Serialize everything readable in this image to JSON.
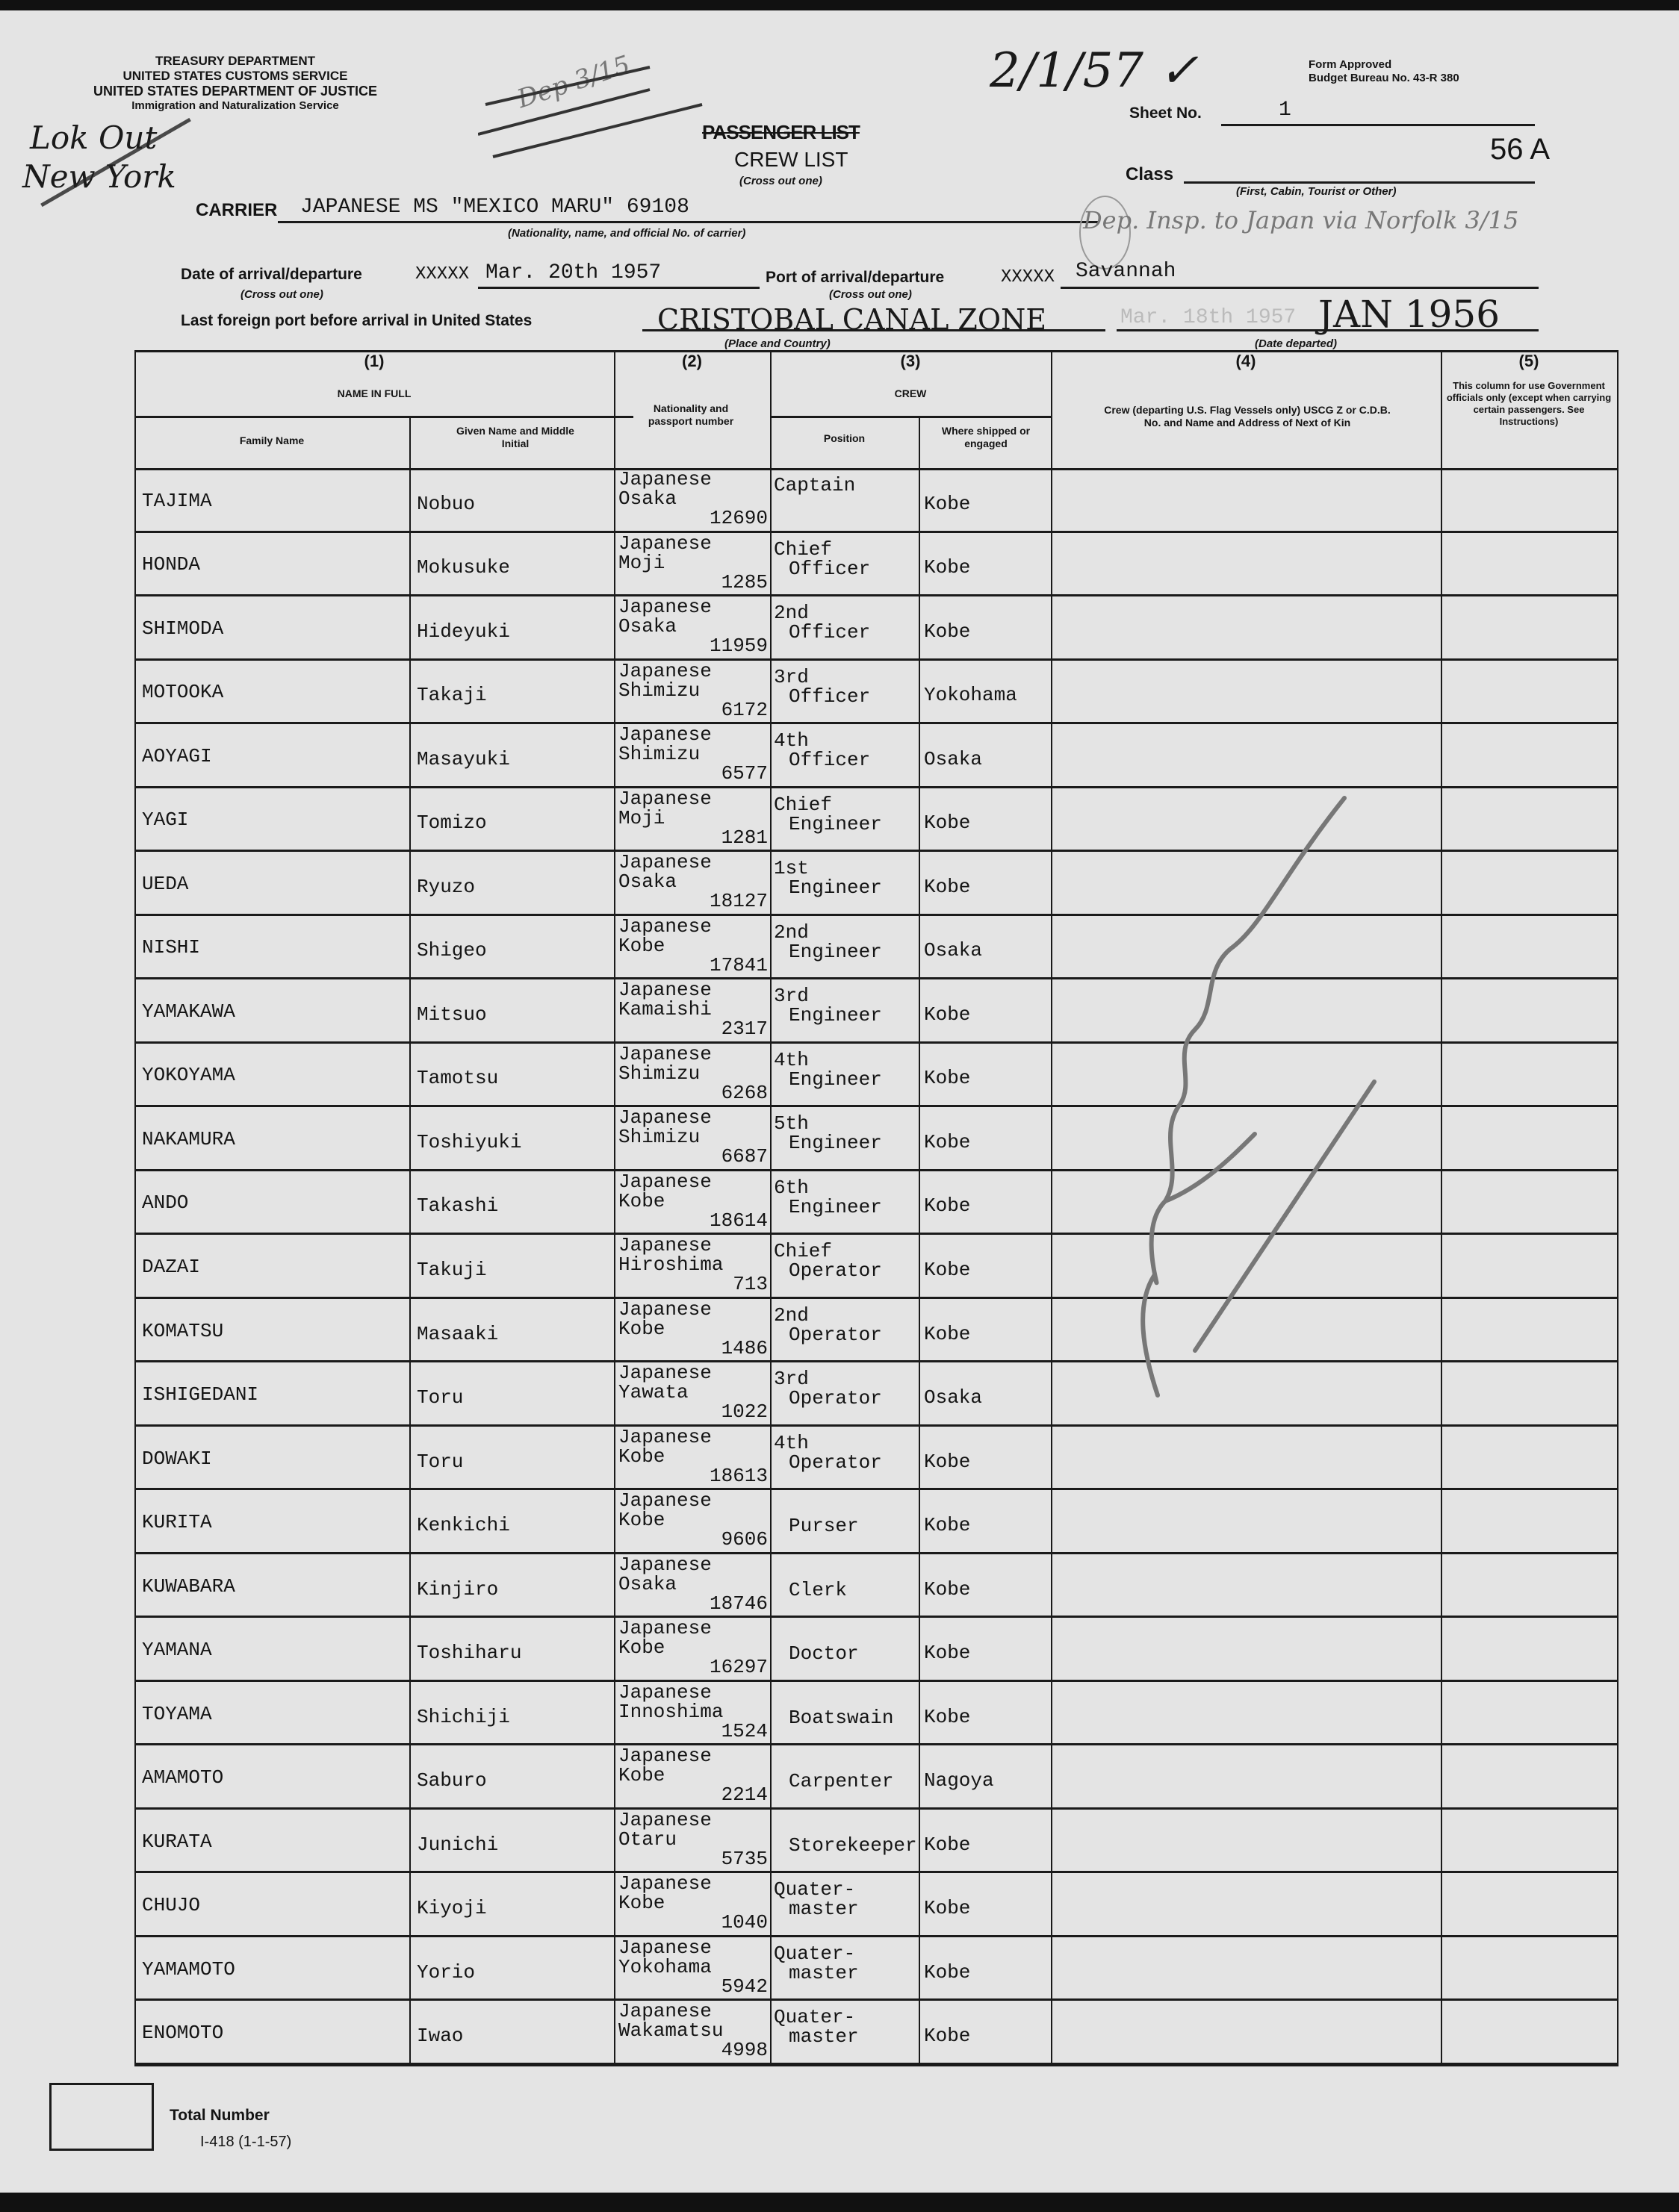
{
  "agency": {
    "line1": "TREASURY DEPARTMENT",
    "line2": "UNITED STATES CUSTOMS SERVICE",
    "line3": "UNITED STATES DEPARTMENT OF JUSTICE",
    "line4": "Immigration and Naturalization Service"
  },
  "form": {
    "approved": "Form Approved",
    "budget": "Budget Bureau No. 43-R 380",
    "title_passenger": "PASSENGER LIST",
    "title_crew": "CREW LIST",
    "title_caption": "(Cross out one)",
    "number": "I-418 (1-1-57)"
  },
  "sheet": {
    "label": "Sheet No.",
    "value": "1",
    "stamp": "56 A"
  },
  "class": {
    "label": "Class",
    "caption": "(First, Cabin, Tourist or Other)"
  },
  "carrier": {
    "label": "CARRIER",
    "value": "JAPANESE MS \"MEXICO MARU\"  69108",
    "caption": "(Nationality, name, and official No. of carrier)"
  },
  "arrival": {
    "date_label": "Date of arrival/departure",
    "date_strike": "XXXXX",
    "date_caption": "(Cross out one)",
    "date_value": "Mar. 20th 1957",
    "port_label": "Port of arrival/departure",
    "port_strike": "XXXXX",
    "port_caption": "(Cross out one)",
    "port_value": "Savannah"
  },
  "last_port": {
    "label": "Last foreign port before arrival in United States",
    "place_value": "CRISTOBAL CANAL ZONE",
    "place_caption": "(Place and Country)",
    "typed_date": "Mar. 18th 1957",
    "date_value": "JAN 1956",
    "date_caption": "(Date departed)"
  },
  "annotations": {
    "date_check": "2/1/57 ✓",
    "dep_note": "Dep 3/15",
    "dep_insp": "Dep. Insp. to Japan via Norfolk 3/15",
    "left_1": "Lok Out",
    "left_2": "New York"
  },
  "table": {
    "col1_num": "(1)",
    "col1_title": "NAME IN FULL",
    "family": "Family Name",
    "given": "Given Name and Middle Initial",
    "col2_num": "(2)",
    "col2_title": "Nationality and passport number",
    "col3_num": "(3)",
    "col3_title": "CREW",
    "position": "Position",
    "shipped": "Where shipped or engaged",
    "col4_num": "(4)",
    "col4_title": "Crew (departing U.S. Flag Vessels only) USCG Z or C.D.B. No. and Name and Address of Next of Kin",
    "col5_num": "(5)",
    "col5_title": "This column for use Government officials only (except when carrying certain passengers. See Instructions)",
    "rows": [
      {
        "family": "TAJIMA",
        "given": "Nobuo",
        "nationality": "Japanese",
        "city": "Osaka",
        "passport": "12690",
        "position": [
          "Captain",
          ""
        ],
        "shipped": "Kobe"
      },
      {
        "family": "HONDA",
        "given": "Mokusuke",
        "nationality": "Japanese",
        "city": "Moji",
        "passport": "1285",
        "position": [
          "Chief",
          "Officer"
        ],
        "shipped": "Kobe"
      },
      {
        "family": "SHIMODA",
        "given": "Hideyuki",
        "nationality": "Japanese",
        "city": "Osaka",
        "passport": "11959",
        "position": [
          "2nd",
          "Officer"
        ],
        "shipped": "Kobe"
      },
      {
        "family": "MOTOOKA",
        "given": "Takaji",
        "nationality": "Japanese",
        "city": "Shimizu",
        "passport": "6172",
        "position": [
          "3rd",
          "Officer"
        ],
        "shipped": "Yokohama"
      },
      {
        "family": "AOYAGI",
        "given": "Masayuki",
        "nationality": "Japanese",
        "city": "Shimizu",
        "passport": "6577",
        "position": [
          "4th",
          "Officer"
        ],
        "shipped": "Osaka"
      },
      {
        "family": "YAGI",
        "given": "Tomizo",
        "nationality": "Japanese",
        "city": "Moji",
        "passport": "1281",
        "position": [
          "Chief",
          "Engineer"
        ],
        "shipped": "Kobe"
      },
      {
        "family": "UEDA",
        "given": "Ryuzo",
        "nationality": "Japanese",
        "city": "Osaka",
        "passport": "18127",
        "position": [
          "1st",
          "Engineer"
        ],
        "shipped": "Kobe"
      },
      {
        "family": "NISHI",
        "given": "Shigeo",
        "nationality": "Japanese",
        "city": "Kobe",
        "passport": "17841",
        "position": [
          "2nd",
          "Engineer"
        ],
        "shipped": "Osaka"
      },
      {
        "family": "YAMAKAWA",
        "given": "Mitsuo",
        "nationality": "Japanese",
        "city": "Kamaishi",
        "passport": "2317",
        "position": [
          "3rd",
          "Engineer"
        ],
        "shipped": "Kobe"
      },
      {
        "family": "YOKOYAMA",
        "given": "Tamotsu",
        "nationality": "Japanese",
        "city": "Shimizu",
        "passport": "6268",
        "position": [
          "4th",
          "Engineer"
        ],
        "shipped": "Kobe"
      },
      {
        "family": "NAKAMURA",
        "given": "Toshiyuki",
        "nationality": "Japanese",
        "city": "Shimizu",
        "passport": "6687",
        "position": [
          "5th",
          "Engineer"
        ],
        "shipped": "Kobe"
      },
      {
        "family": "ANDO",
        "given": "Takashi",
        "nationality": "Japanese",
        "city": "Kobe",
        "passport": "18614",
        "position": [
          "6th",
          "Engineer"
        ],
        "shipped": "Kobe"
      },
      {
        "family": "DAZAI",
        "given": "Takuji",
        "nationality": "Japanese",
        "city": "Hiroshima",
        "passport": "713",
        "position": [
          "Chief",
          "Operator"
        ],
        "shipped": "Kobe"
      },
      {
        "family": "KOMATSU",
        "given": "Masaaki",
        "nationality": "Japanese",
        "city": "Kobe",
        "passport": "1486",
        "position": [
          "2nd",
          "Operator"
        ],
        "shipped": "Kobe"
      },
      {
        "family": "ISHIGEDANI",
        "given": "Toru",
        "nationality": "Japanese",
        "city": "Yawata",
        "passport": "1022",
        "position": [
          "3rd",
          "Operator"
        ],
        "shipped": "Osaka"
      },
      {
        "family": "DOWAKI",
        "given": "Toru",
        "nationality": "Japanese",
        "city": "Kobe",
        "passport": "18613",
        "position": [
          "4th",
          "Operator"
        ],
        "shipped": "Kobe"
      },
      {
        "family": "KURITA",
        "given": "Kenkichi",
        "nationality": "Japanese",
        "city": "Kobe",
        "passport": "9606",
        "position": [
          "",
          "Purser"
        ],
        "shipped": "Kobe"
      },
      {
        "family": "KUWABARA",
        "given": "Kinjiro",
        "nationality": "Japanese",
        "city": "Osaka",
        "passport": "18746",
        "position": [
          "",
          "Clerk"
        ],
        "shipped": "Kobe"
      },
      {
        "family": "YAMANA",
        "given": "Toshiharu",
        "nationality": "Japanese",
        "city": "Kobe",
        "passport": "16297",
        "position": [
          "",
          "Doctor"
        ],
        "shipped": "Kobe"
      },
      {
        "family": "TOYAMA",
        "given": "Shichiji",
        "nationality": "Japanese",
        "city": "Innoshima",
        "passport": "1524",
        "position": [
          "",
          "Boatswain"
        ],
        "shipped": "Kobe"
      },
      {
        "family": "AMAMOTO",
        "given": "Saburo",
        "nationality": "Japanese",
        "city": "Kobe",
        "passport": "2214",
        "position": [
          "",
          "Carpenter"
        ],
        "shipped": "Nagoya"
      },
      {
        "family": "KURATA",
        "given": "Junichi",
        "nationality": "Japanese",
        "city": "Otaru",
        "passport": "5735",
        "position": [
          "",
          "Storekeeper"
        ],
        "shipped": "Kobe"
      },
      {
        "family": "CHUJO",
        "given": "Kiyoji",
        "nationality": "Japanese",
        "city": "Kobe",
        "passport": "1040",
        "position": [
          "Quater-",
          "master"
        ],
        "shipped": "Kobe"
      },
      {
        "family": "YAMAMOTO",
        "given": "Yorio",
        "nationality": "Japanese",
        "city": "Yokohama",
        "passport": "5942",
        "position": [
          "Quater-",
          "master"
        ],
        "shipped": "Kobe"
      },
      {
        "family": "ENOMOTO",
        "given": "Iwao",
        "nationality": "Japanese",
        "city": "Wakamatsu",
        "passport": "4998",
        "position": [
          "Quater-",
          "master"
        ],
        "shipped": "Kobe"
      }
    ]
  },
  "footer": {
    "total_label": "Total Number",
    "total_value": ""
  }
}
